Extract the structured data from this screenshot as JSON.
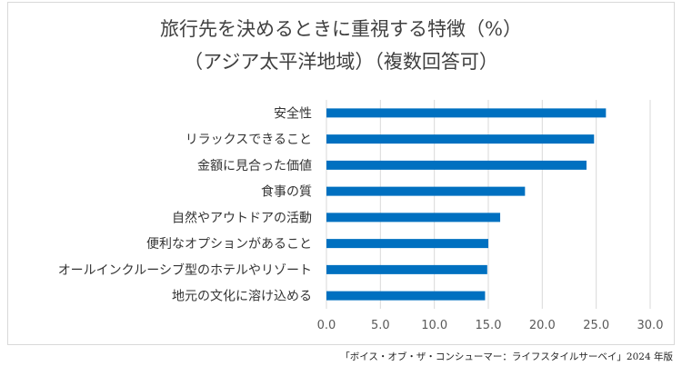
{
  "chart_data": {
    "type": "bar",
    "orientation": "horizontal",
    "title": "旅行先を決めるときに重視する特徴（%）",
    "subtitle": "（アジア太平洋地域）（複数回答可）",
    "categories": [
      "安全性",
      "リラックスできること",
      "金額に見合った価値",
      "食事の質",
      "自然やアウトドアの活動",
      "便利なオプションがあること",
      "オールインクルーシブ型のホテルやリゾート",
      "地元の文化に溶け込める"
    ],
    "values": [
      25.9,
      24.8,
      24.1,
      18.4,
      16.1,
      15.0,
      14.9,
      14.7
    ],
    "xlim": [
      0,
      30
    ],
    "tick_labels": [
      "0.0",
      "5.0",
      "10.0",
      "15.0",
      "20.0",
      "25.0",
      "30.0"
    ],
    "xlabel": "",
    "ylabel": "",
    "grid": "vertical",
    "legend": "none",
    "bar_color": "#0070c0",
    "grid_color": "#d9d9d9",
    "source": "「ボイス・オブ・ザ・コンシューマー：ライフスタイルサーベイ」2024 年版"
  }
}
